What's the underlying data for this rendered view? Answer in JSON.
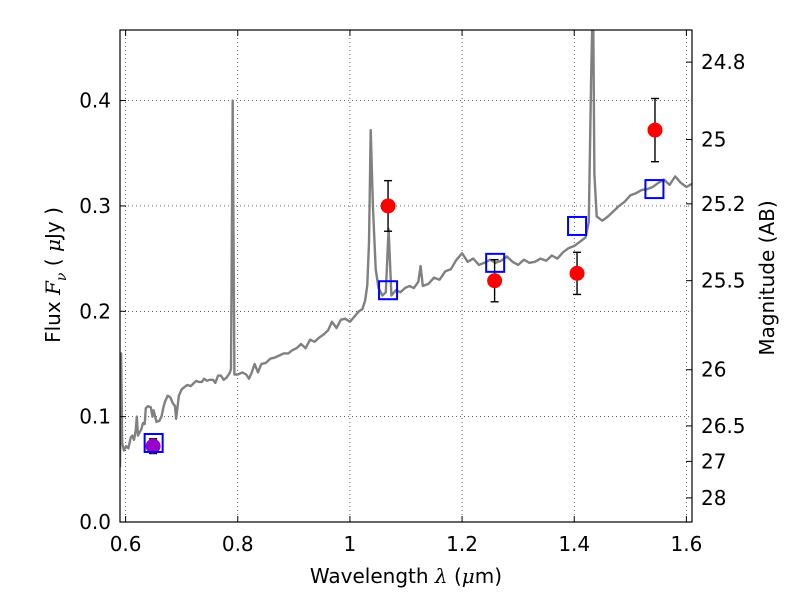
{
  "chart_data": {
    "type": "line",
    "title": "",
    "x_axis": {
      "label_prefix": "Wavelength",
      "label_symbol": "λ",
      "label_unit_open": "(",
      "label_unit_mu": "μ",
      "label_unit_rest": "m)",
      "range": [
        0.59,
        1.61
      ],
      "ticks": [
        0.6,
        0.8,
        1.0,
        1.2,
        1.4,
        1.6
      ],
      "tick_labels": [
        "0.6",
        "0.8",
        "1",
        "1.2",
        "1.4",
        "1.6"
      ]
    },
    "y_axis": {
      "label_prefix": "Flux",
      "label_symbol": "F",
      "label_sub": "ν",
      "label_unit_open": "(",
      "label_unit_mu": "μ",
      "label_unit_rest": "Jy )",
      "range": [
        0.0,
        0.467
      ],
      "ticks": [
        0.0,
        0.1,
        0.2,
        0.3,
        0.4
      ],
      "tick_labels": [
        "0.0",
        "0.1",
        "0.2",
        "0.3",
        "0.4"
      ]
    },
    "y2_axis": {
      "label": "Magnitude (AB)",
      "zero_point_ujy": 3631000000,
      "ticks": [
        24.8,
        25,
        25.2,
        25.5,
        26,
        26.5,
        27,
        28
      ],
      "tick_labels": [
        "24.8",
        "25",
        "25.2",
        "25.5",
        "26",
        "26.5",
        "27",
        "28"
      ]
    },
    "grid": true,
    "series": [
      {
        "kind": "line",
        "color": "#808080",
        "points": [
          [
            0.59,
            0.052
          ],
          [
            0.592,
            0.16
          ],
          [
            0.594,
            0.075
          ],
          [
            0.597,
            0.068
          ],
          [
            0.601,
            0.072
          ],
          [
            0.605,
            0.07
          ],
          [
            0.609,
            0.08
          ],
          [
            0.612,
            0.082
          ],
          [
            0.615,
            0.078
          ],
          [
            0.618,
            0.087
          ],
          [
            0.62,
            0.1
          ],
          [
            0.622,
            0.082
          ],
          [
            0.625,
            0.085
          ],
          [
            0.628,
            0.088
          ],
          [
            0.631,
            0.094
          ],
          [
            0.634,
            0.093
          ],
          [
            0.636,
            0.108
          ],
          [
            0.64,
            0.11
          ],
          [
            0.645,
            0.109
          ],
          [
            0.648,
            0.1
          ],
          [
            0.65,
            0.106
          ],
          [
            0.655,
            0.095
          ],
          [
            0.66,
            0.096
          ],
          [
            0.664,
            0.1
          ],
          [
            0.667,
            0.108
          ],
          [
            0.67,
            0.114
          ],
          [
            0.675,
            0.12
          ],
          [
            0.68,
            0.118
          ],
          [
            0.684,
            0.113
          ],
          [
            0.688,
            0.11
          ],
          [
            0.69,
            0.098
          ],
          [
            0.695,
            0.12
          ],
          [
            0.7,
            0.126
          ],
          [
            0.705,
            0.128
          ],
          [
            0.71,
            0.13
          ],
          [
            0.716,
            0.129
          ],
          [
            0.72,
            0.131
          ],
          [
            0.726,
            0.134
          ],
          [
            0.73,
            0.133
          ],
          [
            0.736,
            0.133
          ],
          [
            0.74,
            0.136
          ],
          [
            0.745,
            0.134
          ],
          [
            0.75,
            0.135
          ],
          [
            0.756,
            0.135
          ],
          [
            0.76,
            0.132
          ],
          [
            0.765,
            0.139
          ],
          [
            0.77,
            0.139
          ],
          [
            0.775,
            0.135
          ],
          [
            0.78,
            0.137
          ],
          [
            0.785,
            0.141
          ],
          [
            0.788,
            0.145
          ],
          [
            0.791,
            0.4
          ],
          [
            0.794,
            0.14
          ],
          [
            0.8,
            0.14
          ],
          [
            0.808,
            0.142
          ],
          [
            0.815,
            0.14
          ],
          [
            0.82,
            0.136
          ],
          [
            0.825,
            0.142
          ],
          [
            0.83,
            0.15
          ],
          [
            0.836,
            0.142
          ],
          [
            0.842,
            0.15
          ],
          [
            0.85,
            0.151
          ],
          [
            0.858,
            0.155
          ],
          [
            0.866,
            0.156
          ],
          [
            0.874,
            0.158
          ],
          [
            0.882,
            0.16
          ],
          [
            0.89,
            0.16
          ],
          [
            0.897,
            0.163
          ],
          [
            0.905,
            0.165
          ],
          [
            0.913,
            0.169
          ],
          [
            0.921,
            0.165
          ],
          [
            0.929,
            0.173
          ],
          [
            0.937,
            0.171
          ],
          [
            0.945,
            0.175
          ],
          [
            0.953,
            0.178
          ],
          [
            0.961,
            0.182
          ],
          [
            0.968,
            0.19
          ],
          [
            0.976,
            0.184
          ],
          [
            0.984,
            0.192
          ],
          [
            0.992,
            0.193
          ],
          [
            1.0,
            0.19
          ],
          [
            1.008,
            0.195
          ],
          [
            1.016,
            0.2
          ],
          [
            1.022,
            0.202
          ],
          [
            1.027,
            0.21
          ],
          [
            1.031,
            0.225
          ],
          [
            1.034,
            0.265
          ],
          [
            1.037,
            0.372
          ],
          [
            1.041,
            0.3
          ],
          [
            1.046,
            0.24
          ],
          [
            1.051,
            0.222
          ],
          [
            1.058,
            0.215
          ],
          [
            1.064,
            0.218
          ],
          [
            1.069,
            0.278
          ],
          [
            1.074,
            0.215
          ],
          [
            1.082,
            0.22
          ],
          [
            1.09,
            0.218
          ],
          [
            1.098,
            0.222
          ],
          [
            1.106,
            0.224
          ],
          [
            1.114,
            0.222
          ],
          [
            1.122,
            0.228
          ],
          [
            1.126,
            0.243
          ],
          [
            1.13,
            0.224
          ],
          [
            1.14,
            0.226
          ],
          [
            1.15,
            0.232
          ],
          [
            1.16,
            0.23
          ],
          [
            1.17,
            0.238
          ],
          [
            1.18,
            0.24
          ],
          [
            1.19,
            0.249
          ],
          [
            1.2,
            0.255
          ],
          [
            1.21,
            0.247
          ],
          [
            1.22,
            0.25
          ],
          [
            1.23,
            0.244
          ],
          [
            1.24,
            0.246
          ],
          [
            1.25,
            0.249
          ],
          [
            1.26,
            0.246
          ],
          [
            1.27,
            0.248
          ],
          [
            1.28,
            0.252
          ],
          [
            1.29,
            0.247
          ],
          [
            1.3,
            0.244
          ],
          [
            1.31,
            0.249
          ],
          [
            1.32,
            0.246
          ],
          [
            1.33,
            0.247
          ],
          [
            1.34,
            0.25
          ],
          [
            1.35,
            0.248
          ],
          [
            1.36,
            0.253
          ],
          [
            1.37,
            0.25
          ],
          [
            1.38,
            0.256
          ],
          [
            1.39,
            0.26
          ],
          [
            1.4,
            0.262
          ],
          [
            1.41,
            0.266
          ],
          [
            1.42,
            0.27
          ],
          [
            1.426,
            0.285
          ],
          [
            1.43,
            0.42
          ],
          [
            1.432,
            0.47
          ],
          [
            1.434,
            0.47
          ],
          [
            1.436,
            0.33
          ],
          [
            1.44,
            0.29
          ],
          [
            1.45,
            0.286
          ],
          [
            1.46,
            0.29
          ],
          [
            1.47,
            0.295
          ],
          [
            1.48,
            0.3
          ],
          [
            1.49,
            0.304
          ],
          [
            1.5,
            0.31
          ],
          [
            1.51,
            0.312
          ],
          [
            1.52,
            0.315
          ],
          [
            1.53,
            0.316
          ],
          [
            1.54,
            0.318
          ],
          [
            1.55,
            0.322
          ],
          [
            1.56,
            0.325
          ],
          [
            1.57,
            0.32
          ],
          [
            1.58,
            0.328
          ],
          [
            1.59,
            0.322
          ],
          [
            1.6,
            0.318
          ],
          [
            1.61,
            0.321
          ]
        ]
      },
      {
        "kind": "scatter_errorbar",
        "marker": "circle",
        "color": "#ff0000",
        "points": [
          {
            "x": 1.068,
            "y": 0.3,
            "err": 0.024
          },
          {
            "x": 1.258,
            "y": 0.229,
            "err": 0.02
          },
          {
            "x": 1.405,
            "y": 0.236,
            "err": 0.02
          },
          {
            "x": 1.544,
            "y": 0.372,
            "err": 0.03
          }
        ]
      },
      {
        "kind": "scatter_errorbar",
        "marker": "circle",
        "color": "#9900cc",
        "points": [
          {
            "x": 0.649,
            "y": 0.072,
            "err": 0.007
          }
        ]
      },
      {
        "kind": "scatter",
        "marker": "square-open",
        "color": "#0000ff",
        "points": [
          {
            "x": 0.65,
            "y": 0.075
          },
          {
            "x": 1.068,
            "y": 0.22
          },
          {
            "x": 1.259,
            "y": 0.246
          },
          {
            "x": 1.405,
            "y": 0.281
          },
          {
            "x": 1.543,
            "y": 0.316
          }
        ]
      }
    ]
  }
}
